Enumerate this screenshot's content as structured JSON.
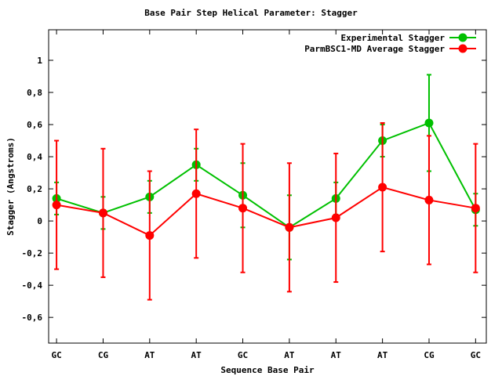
{
  "chart_data": {
    "type": "line",
    "title": "Base Pair Step Helical Parameter: Stagger",
    "xlabel": "Sequence Base Pair",
    "ylabel": "Stagger (Angstroms)",
    "categories": [
      "GC",
      "CG",
      "AT",
      "AT",
      "GC",
      "AT",
      "AT",
      "AT",
      "CG",
      "GC"
    ],
    "ylim": [
      -0.76,
      1.19
    ],
    "yticks": [
      -0.6,
      -0.4,
      -0.2,
      0,
      0.2,
      0.4,
      0.6,
      0.8,
      1
    ],
    "ytick_labels": [
      "-0,6",
      "-0,4",
      "-0,2",
      "0",
      "0,2",
      "0,4",
      "0,6",
      "0,8",
      "1"
    ],
    "grid": false,
    "legend_position": "top-right",
    "series": [
      {
        "name": "Experimental Stagger",
        "color": "#00c000",
        "values": [
          0.14,
          0.05,
          0.15,
          0.35,
          0.16,
          -0.04,
          0.14,
          0.5,
          0.61,
          0.07
        ],
        "errors": [
          0.1,
          0.1,
          0.1,
          0.1,
          0.2,
          0.2,
          0.1,
          0.1,
          0.3,
          0.1
        ]
      },
      {
        "name": "ParmBSC1-MD Average Stagger",
        "color": "#ff0000",
        "values": [
          0.1,
          0.05,
          -0.09,
          0.17,
          0.08,
          -0.04,
          0.02,
          0.21,
          0.13,
          0.08
        ],
        "errors": [
          0.4,
          0.4,
          0.4,
          0.4,
          0.4,
          0.4,
          0.4,
          0.4,
          0.4,
          0.4
        ]
      }
    ]
  }
}
